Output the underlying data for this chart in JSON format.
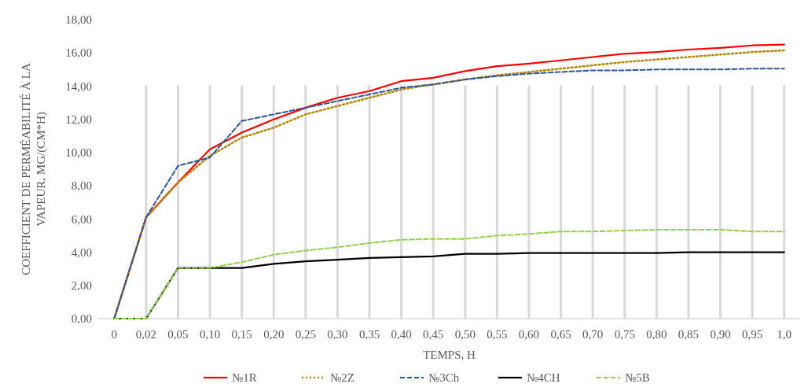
{
  "chart_data": {
    "type": "line",
    "xlabel": "TEMPS, H",
    "ylabel": "COEFFICIENT DE PERMÉABILITÉ À LA VAPEUR, MG/(CM*H)",
    "categories": [
      "0",
      "0,02",
      "0,05",
      "0,10",
      "0,15",
      "0,20",
      "0,25",
      "0,30",
      "0,35",
      "0,40",
      "0,45",
      "0,50",
      "0,55",
      "0,60",
      "0,65",
      "0,70",
      "0,75",
      "0,80",
      "0,85",
      "0,90",
      "0,95",
      "1,0"
    ],
    "ylim": [
      0,
      18
    ],
    "yticks": [
      {
        "value": 0,
        "label": "0,00"
      },
      {
        "value": 2,
        "label": "2,00"
      },
      {
        "value": 4,
        "label": "4,00"
      },
      {
        "value": 6,
        "label": "6,00"
      },
      {
        "value": 8,
        "label": "8,00"
      },
      {
        "value": 10,
        "label": "10,00"
      },
      {
        "value": 12,
        "label": "12,00"
      },
      {
        "value": 14,
        "label": "14,00"
      },
      {
        "value": 16,
        "label": "16,00"
      },
      {
        "value": 18,
        "label": "18,00"
      }
    ],
    "grid": "x",
    "legend": "bottom",
    "marker": "none",
    "series": [
      {
        "name": "№1R",
        "color": "#ff0000",
        "line_style": "solid",
        "values": [
          0,
          6.1,
          8.2,
          10.2,
          11.2,
          12.0,
          12.7,
          13.3,
          13.7,
          14.3,
          14.5,
          14.9,
          15.2,
          15.35,
          15.55,
          15.75,
          15.95,
          16.05,
          16.2,
          16.3,
          16.45,
          16.5
        ]
      },
      {
        "name": "№2Z",
        "color": "#b8860b",
        "line_style": "dotted",
        "values": [
          0,
          6.1,
          8.2,
          9.8,
          10.9,
          11.5,
          12.3,
          12.8,
          13.3,
          13.8,
          14.1,
          14.4,
          14.65,
          14.85,
          15.05,
          15.25,
          15.45,
          15.6,
          15.75,
          15.9,
          16.05,
          16.15
        ]
      },
      {
        "name": "№3Ch",
        "color": "#2f5597",
        "line_style": "dashed",
        "values": [
          0,
          6.1,
          9.2,
          9.7,
          11.9,
          12.3,
          12.7,
          13.1,
          13.5,
          13.9,
          14.1,
          14.4,
          14.6,
          14.75,
          14.85,
          14.95,
          14.95,
          15.0,
          15.0,
          15.0,
          15.05,
          15.05
        ]
      },
      {
        "name": "№4CH",
        "color": "#000000",
        "line_style": "solid",
        "values": [
          0,
          0,
          3.05,
          3.05,
          3.05,
          3.3,
          3.45,
          3.55,
          3.65,
          3.7,
          3.75,
          3.9,
          3.9,
          3.95,
          3.95,
          3.95,
          3.95,
          3.95,
          4.0,
          4.0,
          4.0,
          4.0
        ]
      },
      {
        "name": "№5B",
        "color": "#92d050",
        "line_style": "dashed",
        "values": [
          0,
          0,
          3.05,
          3.05,
          3.4,
          3.85,
          4.1,
          4.3,
          4.55,
          4.75,
          4.8,
          4.8,
          5.0,
          5.1,
          5.25,
          5.25,
          5.3,
          5.35,
          5.35,
          5.35,
          5.25,
          5.25
        ]
      }
    ]
  }
}
